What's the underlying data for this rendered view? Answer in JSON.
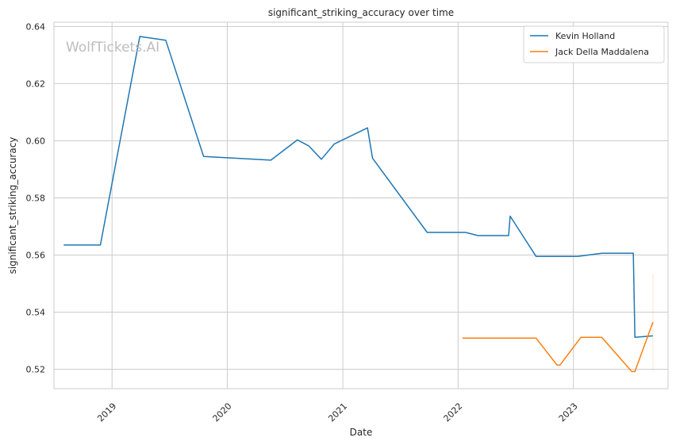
{
  "chart_data": {
    "type": "line",
    "title": "significant_striking_accuracy over time",
    "xlabel": "Date",
    "ylabel": "significant_striking_accuracy",
    "watermark": "WolfTickets.AI",
    "x_ticks": [
      "2019",
      "2020",
      "2021",
      "2022",
      "2023"
    ],
    "y_ticks": [
      "0.52",
      "0.54",
      "0.56",
      "0.58",
      "0.60",
      "0.62",
      "0.64"
    ],
    "xlim": [
      "2018-07-01",
      "2023-10-28"
    ],
    "ylim": [
      0.5132,
      0.6415
    ],
    "grid": true,
    "legend_position": "top-right",
    "colors": {
      "series1": "#1f77b4",
      "series2": "#ff7f0e",
      "grid": "#cccccc",
      "spine": "#cccccc"
    },
    "series": [
      {
        "name": "Kevin Holland",
        "color": "#1f77b4",
        "x": [
          "2018-08-01",
          "2018-11-25",
          "2019-03-30",
          "2019-06-20",
          "2019-10-18",
          "2020-05-18",
          "2020-08-10",
          "2020-09-15",
          "2020-10-25",
          "2020-12-05",
          "2021-03-20",
          "2021-04-05",
          "2021-09-25",
          "2022-01-25",
          "2022-03-05",
          "2022-06-10",
          "2022-06-15",
          "2022-09-05",
          "2023-01-15",
          "2023-04-01",
          "2023-07-10",
          "2023-07-15",
          "2023-09-10"
        ],
        "y": [
          0.5635,
          0.5635,
          0.6365,
          0.6352,
          0.5945,
          0.5932,
          0.6003,
          0.5982,
          0.5935,
          0.5989,
          0.6045,
          0.5939,
          0.5679,
          0.5679,
          0.5668,
          0.5668,
          0.5736,
          0.5595,
          0.5595,
          0.5606,
          0.5606,
          0.5312,
          0.5317
        ]
      },
      {
        "name": "Jack Della Maddalena",
        "color": "#ff7f0e",
        "x": [
          "2022-01-15",
          "2022-09-05",
          "2022-11-10",
          "2022-11-20",
          "2023-01-25",
          "2023-04-01",
          "2023-07-05",
          "2023-07-15",
          "2023-09-10"
        ],
        "y": [
          0.5309,
          0.5309,
          0.5215,
          0.5215,
          0.5312,
          0.5312,
          0.5192,
          0.5192,
          0.5365
        ]
      }
    ]
  }
}
